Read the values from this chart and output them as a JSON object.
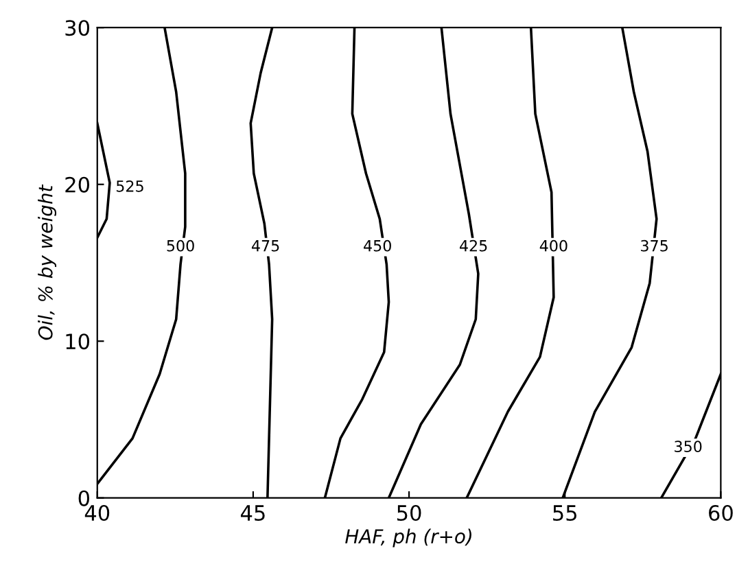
{
  "chart_data": {
    "type": "line",
    "xlabel": "HAF, ph (r+o)",
    "ylabel": "Oil, % by weight",
    "xlim": [
      40,
      60
    ],
    "xticks": [
      40,
      45,
      50,
      55,
      60
    ],
    "ylim": [
      0,
      30
    ],
    "yticks": [
      0,
      10,
      20,
      30
    ],
    "grid": false,
    "marker": "none",
    "line_style": "solid",
    "series": [
      {
        "color": "#000000",
        "x": [
          40,
          40.4,
          40.3,
          40
        ],
        "values": [
          23.9,
          20.1,
          17.8,
          16.6
        ]
      },
      {
        "color": "#000000",
        "x": [
          42.16,
          42.53,
          42.82,
          42.82,
          42.67,
          42.53,
          42.0,
          41.13,
          40
        ],
        "values": [
          30,
          25.9,
          20.7,
          17.3,
          14.9,
          11.4,
          7.9,
          3.8,
          0.9
        ]
      },
      {
        "color": "#000000",
        "x": [
          45.61,
          45.24,
          44.92,
          45.02,
          45.36,
          45.51,
          45.61,
          45.46
        ],
        "values": [
          30,
          27.1,
          23.9,
          20.7,
          17.5,
          14.9,
          11.4,
          0
        ]
      },
      {
        "color": "#000000",
        "x": [
          48.25,
          48.18,
          48.62,
          49.06,
          49.28,
          49.35,
          49.2,
          48.5,
          47.8,
          47.3
        ],
        "values": [
          30,
          24.5,
          20.7,
          17.8,
          14.9,
          12.5,
          9.3,
          6.3,
          3.8,
          0
        ]
      },
      {
        "color": "#000000",
        "x": [
          51.04,
          51.33,
          51.92,
          52.22,
          52.14,
          51.63,
          50.38,
          49.35
        ],
        "values": [
          30,
          24.5,
          18.1,
          14.3,
          11.4,
          8.5,
          4.7,
          0
        ]
      },
      {
        "color": "#000000",
        "x": [
          53.91,
          54.05,
          54.57,
          54.64,
          54.2,
          53.17,
          51.85
        ],
        "values": [
          30,
          24.5,
          19.5,
          12.8,
          9.0,
          5.5,
          0
        ]
      },
      {
        "color": "#000000",
        "x": [
          56.84,
          57.21,
          57.65,
          57.94,
          57.72,
          57.14,
          55.96,
          54.93
        ],
        "values": [
          30,
          25.9,
          22.1,
          17.8,
          13.7,
          9.6,
          5.5,
          0
        ]
      },
      {
        "color": "#000000",
        "x": [
          60,
          59.19,
          58.09
        ],
        "values": [
          7.9,
          3.8,
          0
        ]
      }
    ],
    "annotations": [
      {
        "text": "525",
        "x": 41.05,
        "y": 19.8
      },
      {
        "text": "500",
        "x": 42.67,
        "y": 16.0
      },
      {
        "text": "475",
        "x": 45.4,
        "y": 16.0
      },
      {
        "text": "450",
        "x": 48.99,
        "y": 16.0
      },
      {
        "text": "425",
        "x": 52.07,
        "y": 16.0
      },
      {
        "text": "400",
        "x": 54.64,
        "y": 16.0
      },
      {
        "text": "375",
        "x": 57.87,
        "y": 16.0
      },
      {
        "text": "350",
        "x": 58.95,
        "y": 3.2
      }
    ]
  }
}
